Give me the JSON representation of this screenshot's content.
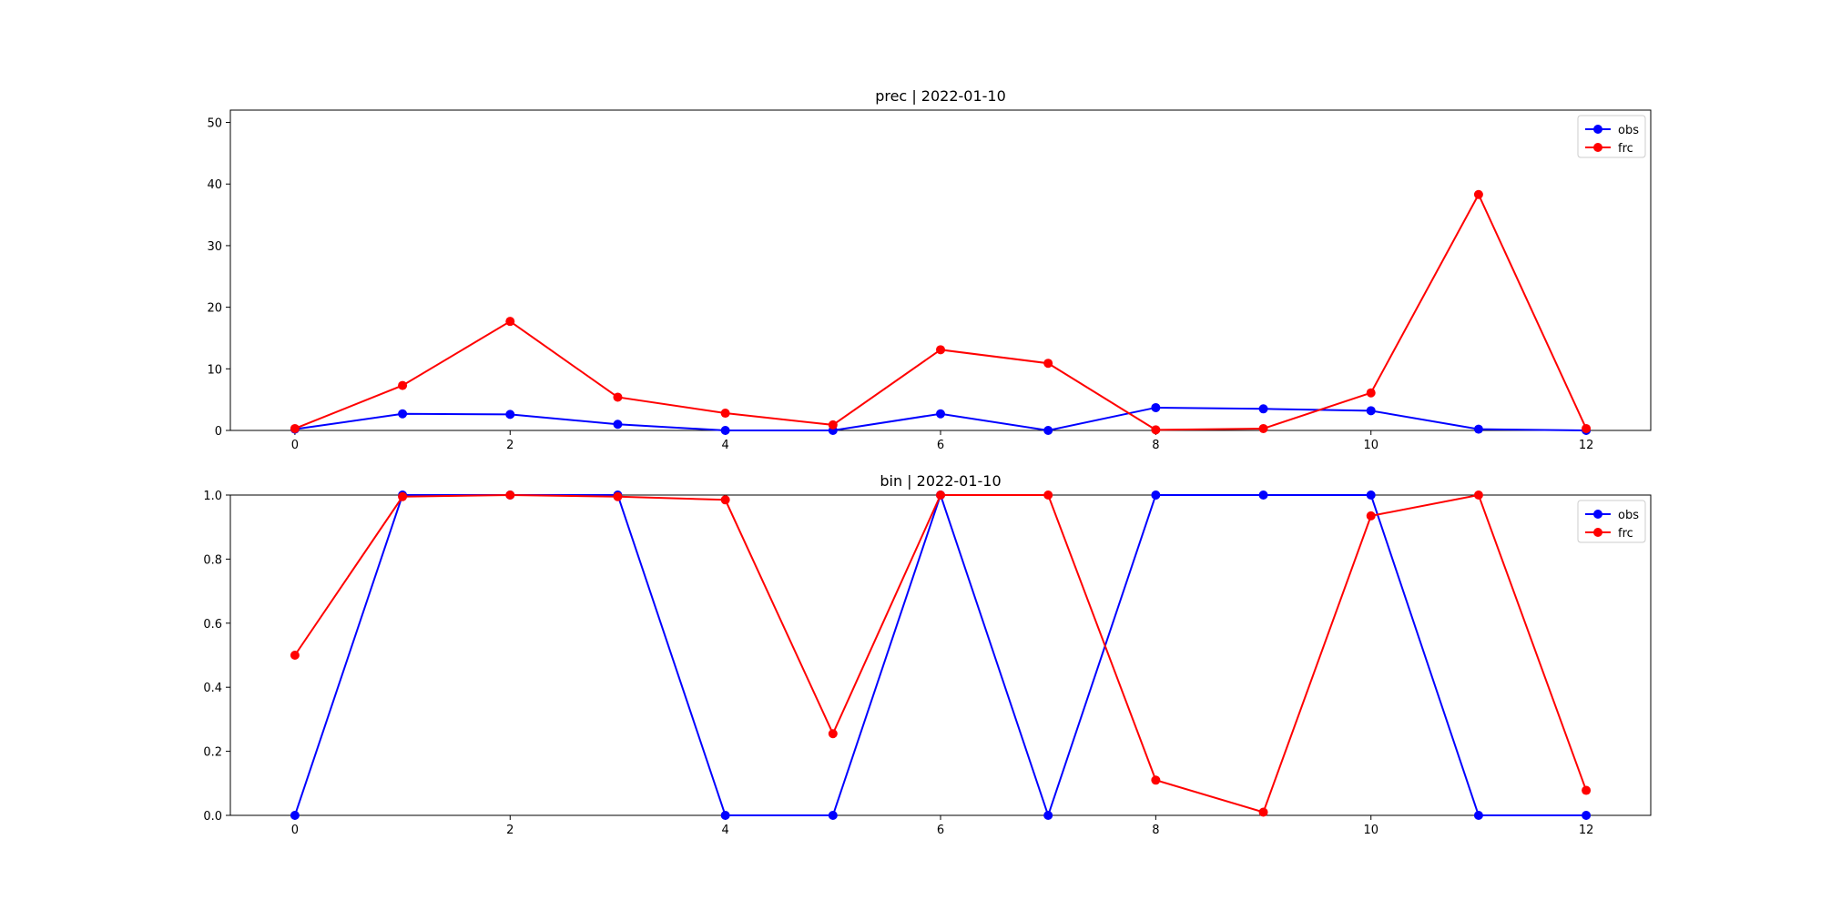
{
  "chart_data": [
    {
      "type": "line",
      "title": "prec | 2022-01-10",
      "xlabel": "",
      "ylabel": "",
      "x": [
        0,
        1,
        2,
        3,
        4,
        5,
        6,
        7,
        8,
        9,
        10,
        11,
        12
      ],
      "xlim": [
        -0.6,
        12.6
      ],
      "ylim": [
        0,
        52
      ],
      "xticks": [
        0,
        2,
        4,
        6,
        8,
        10,
        12
      ],
      "yticks": [
        0,
        10,
        20,
        30,
        40,
        50
      ],
      "xtick_labels": [
        "0",
        "2",
        "4",
        "6",
        "8",
        "10",
        "12"
      ],
      "ytick_labels": [
        "0",
        "10",
        "20",
        "30",
        "40",
        "50"
      ],
      "grid": false,
      "legend": "upper-right",
      "series": [
        {
          "name": "obs",
          "color": "#0000ff",
          "marker": "circle",
          "values": [
            0.2,
            2.7,
            2.6,
            1.0,
            0.0,
            0.0,
            2.7,
            0.0,
            3.7,
            3.5,
            3.2,
            0.2,
            0.0
          ]
        },
        {
          "name": "frc",
          "color": "#ff0000",
          "marker": "circle",
          "values": [
            0.3,
            7.3,
            17.7,
            5.4,
            2.8,
            0.9,
            13.1,
            10.9,
            0.1,
            0.3,
            6.1,
            38.3,
            0.3
          ]
        }
      ]
    },
    {
      "type": "line",
      "title": "bin | 2022-01-10",
      "xlabel": "",
      "ylabel": "",
      "x": [
        0,
        1,
        2,
        3,
        4,
        5,
        6,
        7,
        8,
        9,
        10,
        11,
        12
      ],
      "xlim": [
        -0.6,
        12.6
      ],
      "ylim": [
        0,
        1.0
      ],
      "xticks": [
        0,
        2,
        4,
        6,
        8,
        10,
        12
      ],
      "yticks": [
        0,
        0.2,
        0.4,
        0.6,
        0.8,
        1.0
      ],
      "xtick_labels": [
        "0",
        "2",
        "4",
        "6",
        "8",
        "10",
        "12"
      ],
      "ytick_labels": [
        "0.0",
        "0.2",
        "0.4",
        "0.6",
        "0.8",
        "1.0"
      ],
      "grid": false,
      "legend": "upper-right",
      "series": [
        {
          "name": "obs",
          "color": "#0000ff",
          "marker": "circle",
          "values": [
            0,
            1,
            1,
            1,
            0,
            0,
            1,
            0,
            1,
            1,
            1,
            0,
            0
          ]
        },
        {
          "name": "frc",
          "color": "#ff0000",
          "marker": "circle",
          "values": [
            0.5,
            0.995,
            1.0,
            0.995,
            0.985,
            0.255,
            1.0,
            1.0,
            0.11,
            0.01,
            0.935,
            1.0,
            0.078
          ]
        }
      ]
    }
  ]
}
